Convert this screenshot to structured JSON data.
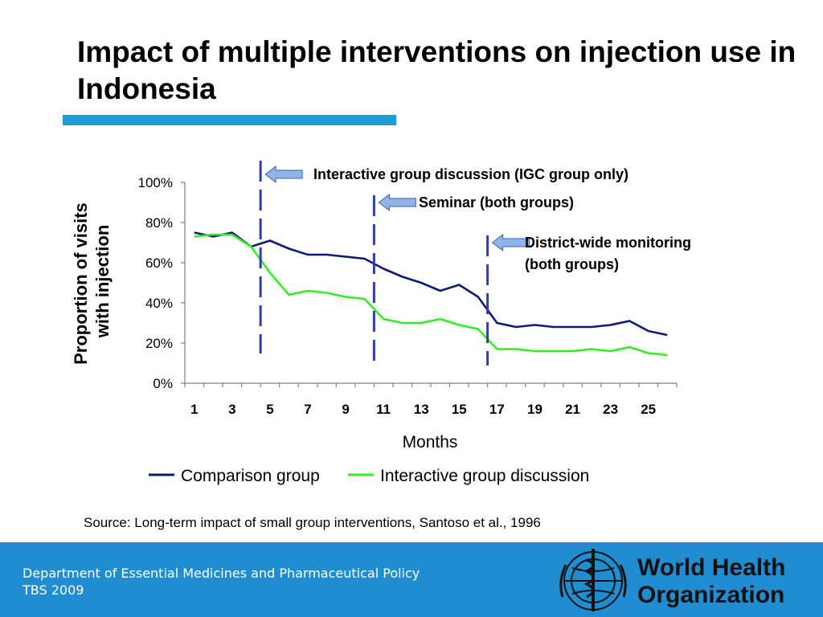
{
  "slide": {
    "title": "Impact of multiple interventions on injection use in Indonesia",
    "source": "Source: Long-term impact of small group interventions, Santoso et al., 1996",
    "accent_color": "#1f9bd8"
  },
  "footer": {
    "line1": "Department of Essential Medicines and Pharmaceutical Policy",
    "line2": "TBS 2009",
    "background_color": "#1f8dd0",
    "logo": {
      "icon": "who-emblem-icon",
      "line1": "World Health",
      "line2": "Organization"
    }
  },
  "chart_data": {
    "type": "line",
    "title": "",
    "xlabel": "Months",
    "ylabel": "Proportion of visits with injection",
    "x": [
      1,
      2,
      3,
      4,
      5,
      6,
      7,
      8,
      9,
      10,
      11,
      12,
      13,
      14,
      15,
      16,
      17,
      18,
      19,
      20,
      21,
      22,
      23,
      24,
      25,
      26
    ],
    "x_ticks": [
      "1",
      "3",
      "5",
      "7",
      "9",
      "11",
      "13",
      "15",
      "17",
      "19",
      "21",
      "23",
      "25"
    ],
    "y_ticks": [
      "0%",
      "20%",
      "40%",
      "60%",
      "80%",
      "100%"
    ],
    "ylim": [
      0,
      100
    ],
    "y_unit": "%",
    "grid": false,
    "legend_position": "bottom",
    "series": [
      {
        "name": "Comparison group",
        "color": "#0d1a7a",
        "values": [
          75,
          73,
          75,
          68,
          71,
          67,
          64,
          64,
          63,
          62,
          57,
          53,
          50,
          46,
          49,
          43,
          30,
          28,
          29,
          28,
          28,
          28,
          29,
          31,
          26,
          24
        ]
      },
      {
        "name": "Interactive group discussion",
        "color": "#33ee22",
        "values": [
          73,
          74,
          74,
          68,
          55,
          44,
          46,
          45,
          43,
          42,
          32,
          30,
          30,
          32,
          29,
          27,
          17,
          17,
          16,
          16,
          16,
          17,
          16,
          18,
          15,
          14
        ]
      }
    ],
    "interventions": [
      {
        "x": 5,
        "label": "Interactive group discussion (IGC group only)"
      },
      {
        "x": 11,
        "label": "Seminar (both groups)"
      },
      {
        "x": 17,
        "label": "District-wide monitoring (both groups)",
        "label_lines": [
          "District-wide monitoring",
          "(both groups)"
        ]
      }
    ],
    "intervention_line_color": "#2f3bb0",
    "arrow_color": "#8fb4e8"
  }
}
